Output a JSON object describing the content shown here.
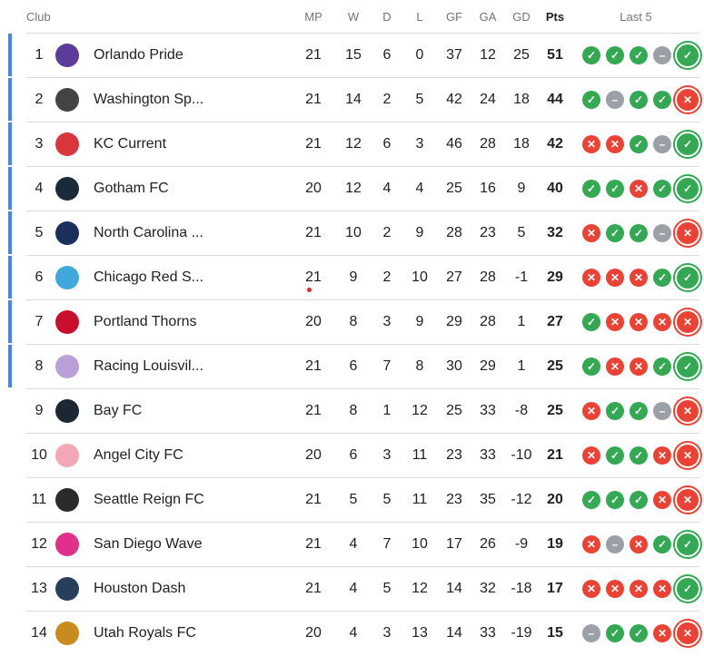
{
  "headers": {
    "club": "Club",
    "mp": "MP",
    "w": "W",
    "d": "D",
    "l": "L",
    "gf": "GF",
    "ga": "GA",
    "gd": "GD",
    "pts": "Pts",
    "last5": "Last 5"
  },
  "colors": {
    "win": "#34a853",
    "loss": "#ea4335",
    "draw": "#9aa0a6",
    "qualify_bar": "#4285f4"
  },
  "rows": [
    {
      "pos": "1",
      "club": "Orlando Pride",
      "mp": "21",
      "w": "15",
      "d": "6",
      "l": "0",
      "gf": "37",
      "ga": "12",
      "gd": "25",
      "pts": "51",
      "last5": [
        "W",
        "W",
        "W",
        "D",
        "W"
      ],
      "logo": "#5b3c99"
    },
    {
      "pos": "2",
      "club": "Washington Sp...",
      "mp": "21",
      "w": "14",
      "d": "2",
      "l": "5",
      "gf": "42",
      "ga": "24",
      "gd": "18",
      "pts": "44",
      "last5": [
        "W",
        "D",
        "W",
        "W",
        "L"
      ],
      "logo": "#444444"
    },
    {
      "pos": "3",
      "club": "KC Current",
      "mp": "21",
      "w": "12",
      "d": "6",
      "l": "3",
      "gf": "46",
      "ga": "28",
      "gd": "18",
      "pts": "42",
      "last5": [
        "L",
        "L",
        "W",
        "D",
        "W"
      ],
      "logo": "#d9363e"
    },
    {
      "pos": "4",
      "club": "Gotham FC",
      "mp": "20",
      "w": "12",
      "d": "4",
      "l": "4",
      "gf": "25",
      "ga": "16",
      "gd": "9",
      "pts": "40",
      "last5": [
        "W",
        "W",
        "L",
        "W",
        "W"
      ],
      "logo": "#1a2a3a"
    },
    {
      "pos": "5",
      "club": "North Carolina ...",
      "mp": "21",
      "w": "10",
      "d": "2",
      "l": "9",
      "gf": "28",
      "ga": "23",
      "gd": "5",
      "pts": "32",
      "last5": [
        "L",
        "W",
        "W",
        "D",
        "L"
      ],
      "logo": "#1b2f5c"
    },
    {
      "pos": "6",
      "club": "Chicago Red S...",
      "mp": "21",
      "w": "9",
      "d": "2",
      "l": "10",
      "gf": "27",
      "ga": "28",
      "gd": "-1",
      "pts": "29",
      "last5": [
        "L",
        "L",
        "L",
        "W",
        "W"
      ],
      "logo": "#41a6d9",
      "live": true
    },
    {
      "pos": "7",
      "club": "Portland Thorns",
      "mp": "20",
      "w": "8",
      "d": "3",
      "l": "9",
      "gf": "29",
      "ga": "28",
      "gd": "1",
      "pts": "27",
      "last5": [
        "W",
        "L",
        "L",
        "L",
        "L"
      ],
      "logo": "#c8102e"
    },
    {
      "pos": "8",
      "club": "Racing Louisvil...",
      "mp": "21",
      "w": "6",
      "d": "7",
      "l": "8",
      "gf": "30",
      "ga": "29",
      "gd": "1",
      "pts": "25",
      "last5": [
        "W",
        "L",
        "L",
        "W",
        "W"
      ],
      "logo": "#b9a0d9"
    },
    {
      "pos": "9",
      "club": "Bay FC",
      "mp": "21",
      "w": "8",
      "d": "1",
      "l": "12",
      "gf": "25",
      "ga": "33",
      "gd": "-8",
      "pts": "25",
      "last5": [
        "L",
        "W",
        "W",
        "D",
        "L"
      ],
      "logo": "#1d2733"
    },
    {
      "pos": "10",
      "club": "Angel City FC",
      "mp": "20",
      "w": "6",
      "d": "3",
      "l": "11",
      "gf": "23",
      "ga": "33",
      "gd": "-10",
      "pts": "21",
      "last5": [
        "L",
        "W",
        "W",
        "L",
        "L"
      ],
      "logo": "#f4a7b5"
    },
    {
      "pos": "11",
      "club": "Seattle Reign FC",
      "mp": "21",
      "w": "5",
      "d": "5",
      "l": "11",
      "gf": "23",
      "ga": "35",
      "gd": "-12",
      "pts": "20",
      "last5": [
        "W",
        "W",
        "W",
        "L",
        "L"
      ],
      "logo": "#2b2b2b"
    },
    {
      "pos": "12",
      "club": "San Diego Wave",
      "mp": "21",
      "w": "4",
      "d": "7",
      "l": "10",
      "gf": "17",
      "ga": "26",
      "gd": "-9",
      "pts": "19",
      "last5": [
        "L",
        "D",
        "L",
        "W",
        "W"
      ],
      "logo": "#e0308a"
    },
    {
      "pos": "13",
      "club": "Houston Dash",
      "mp": "21",
      "w": "4",
      "d": "5",
      "l": "12",
      "gf": "14",
      "ga": "32",
      "gd": "-18",
      "pts": "17",
      "last5": [
        "L",
        "L",
        "L",
        "L",
        "W"
      ],
      "logo": "#283e5b"
    },
    {
      "pos": "14",
      "club": "Utah Royals FC",
      "mp": "20",
      "w": "4",
      "d": "3",
      "l": "13",
      "gf": "14",
      "ga": "33",
      "gd": "-19",
      "pts": "15",
      "last5": [
        "D",
        "W",
        "W",
        "L",
        "L"
      ],
      "logo": "#c98a1f"
    }
  ]
}
